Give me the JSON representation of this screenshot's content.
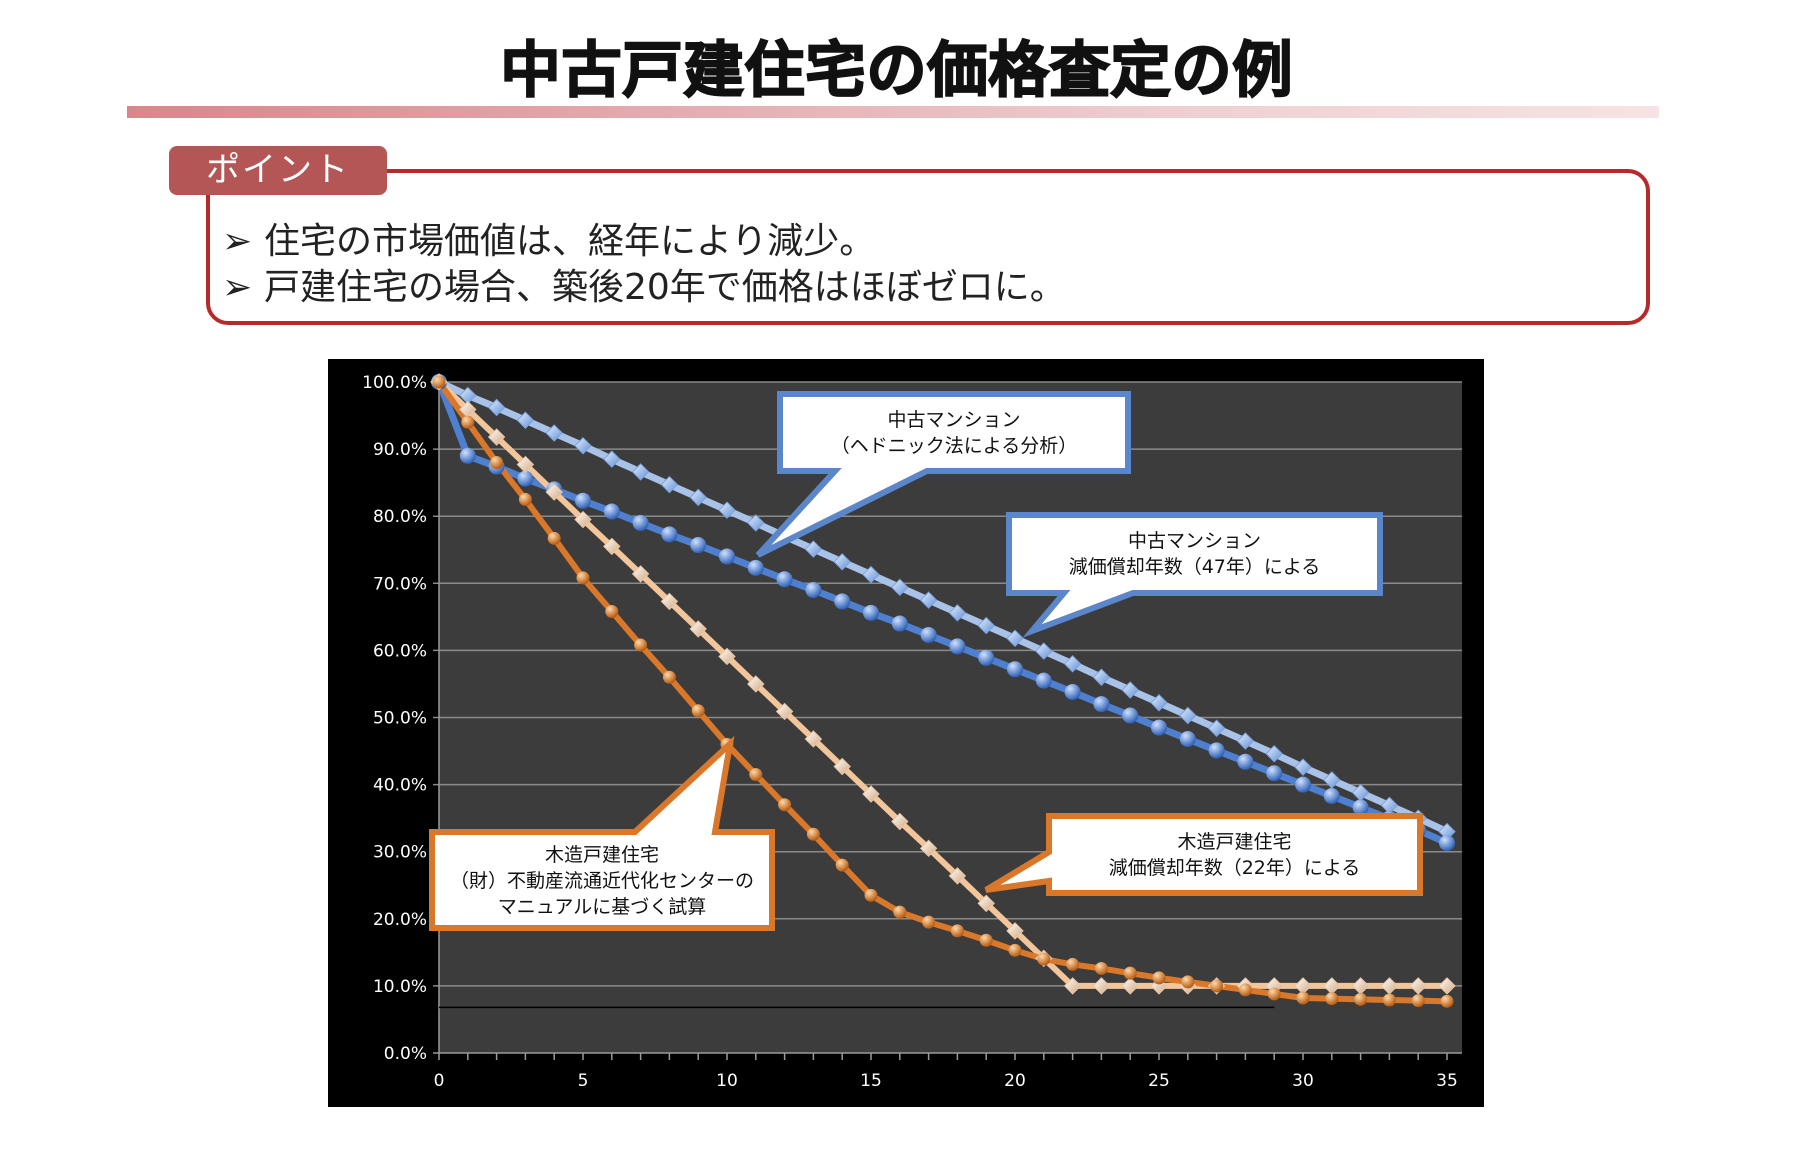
{
  "title": "中古戸建住宅の価格査定の例",
  "point": {
    "tab_label": "ポイント",
    "bullets": [
      {
        "icon": "arrowhead-bullet",
        "text": "住宅の市場価値は、経年により減少。"
      },
      {
        "icon": "arrowhead-bullet",
        "text": "戸建住宅の場合、築後20年で価格はほぼゼロに。"
      }
    ]
  },
  "chart_data": {
    "type": "line",
    "x": [
      0,
      1,
      2,
      3,
      4,
      5,
      6,
      7,
      8,
      9,
      10,
      11,
      12,
      13,
      14,
      15,
      16,
      17,
      18,
      19,
      20,
      21,
      22,
      23,
      24,
      25,
      26,
      27,
      28,
      29,
      30,
      31,
      32,
      33,
      34,
      35
    ],
    "xlim": [
      0,
      35
    ],
    "ylim": [
      0,
      100
    ],
    "x_ticks": [
      "0",
      "5",
      "10",
      "15",
      "20",
      "25",
      "30",
      "35"
    ],
    "y_ticks": [
      "0.0%",
      "10.0%",
      "20.0%",
      "30.0%",
      "40.0%",
      "50.0%",
      "60.0%",
      "70.0%",
      "80.0%",
      "90.0%",
      "100.0%"
    ],
    "grid": true,
    "series": [
      {
        "name": "中古マンション（ヘドニック法による分析）",
        "color": "#a9c3e8",
        "marker": "diamond",
        "values": [
          100,
          98,
          96.2,
          94.3,
          92.4,
          90.5,
          88.5,
          86.6,
          84.7,
          82.8,
          80.9,
          79,
          77,
          75.1,
          73.2,
          71.3,
          69.4,
          67.5,
          65.6,
          63.7,
          61.8,
          59.9,
          58,
          56,
          54.1,
          52.2,
          50.3,
          48.4,
          46.5,
          44.6,
          42.6,
          40.7,
          38.8,
          36.9,
          35,
          33
        ]
      },
      {
        "name": "中古マンション 減価償却年数（47年）による",
        "color": "#4f7fcf",
        "marker": "circle",
        "values": [
          100,
          89,
          87.4,
          85.6,
          84,
          82.3,
          80.7,
          79,
          77.3,
          75.7,
          74,
          72.3,
          70.6,
          69,
          67.3,
          65.6,
          64,
          62.3,
          60.6,
          58.9,
          57.2,
          55.5,
          53.8,
          52,
          50.3,
          48.5,
          46.8,
          45.1,
          43.4,
          41.7,
          40,
          38.3,
          36.6,
          34.9,
          33.2,
          31.3
        ]
      },
      {
        "name": "木造戸建住宅 減価償却年数（22年）による",
        "color": "#f2c59a",
        "marker": "diamond",
        "values": [
          100,
          95.9,
          91.8,
          87.7,
          83.6,
          79.5,
          75.5,
          71.4,
          67.3,
          63.2,
          59.1,
          55,
          50.9,
          46.8,
          42.7,
          38.6,
          34.5,
          30.5,
          26.4,
          22.3,
          18.2,
          14.1,
          10,
          10,
          10,
          10,
          10,
          10,
          10,
          10,
          10,
          10,
          10,
          10,
          10,
          10
        ]
      },
      {
        "name": "木造戸建住宅（財）不動産流通近代化センターのマニュアルに基づく試算",
        "color": "#d9782a",
        "marker": "circle",
        "values": [
          100,
          94,
          88,
          82.5,
          76.7,
          70.8,
          65.8,
          60.8,
          56,
          51,
          46,
          41.5,
          37,
          32.6,
          28,
          23.5,
          21,
          19.5,
          18.2,
          16.8,
          15.3,
          14,
          13.2,
          12.6,
          11.9,
          11.2,
          10.6,
          10,
          9.4,
          8.8,
          8.2,
          8.1,
          8,
          7.9,
          7.8,
          7.7
        ]
      }
    ],
    "annotations": [
      {
        "lines": [
          "中古マンション",
          "（ヘドニック法による分析）"
        ],
        "color": "#5b86c9"
      },
      {
        "lines": [
          "中古マンション",
          "減価償却年数（47年）による"
        ],
        "color": "#5b86c9"
      },
      {
        "lines": [
          "木造戸建住宅",
          "減価償却年数（22年）による"
        ],
        "color": "#d9782a"
      },
      {
        "lines": [
          "木造戸建住宅",
          "（財）不動産流通近代化センターの",
          "マニュアルに基づく試算"
        ],
        "color": "#d9782a"
      }
    ]
  }
}
